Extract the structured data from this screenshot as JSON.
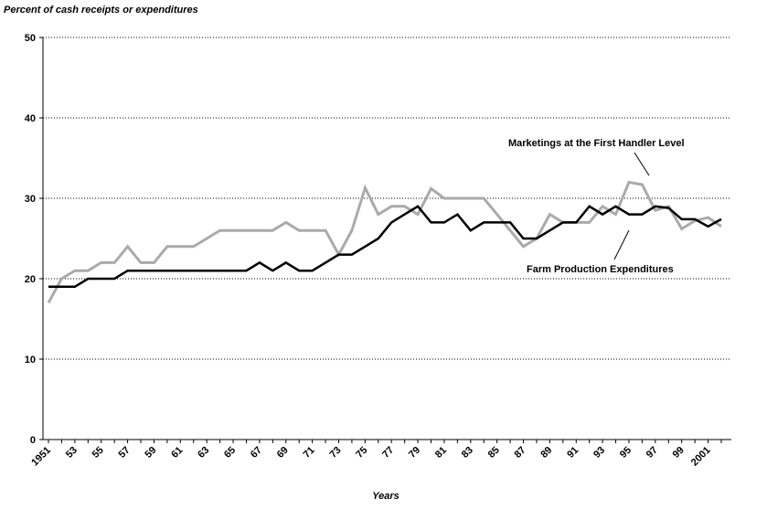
{
  "chart_data": {
    "type": "line",
    "y_axis_label": "Percent of cash receipts or expenditures",
    "x_axis_label": "Years",
    "categories": [
      "1951",
      null,
      "53",
      null,
      "55",
      null,
      "57",
      null,
      "59",
      null,
      "61",
      null,
      "63",
      null,
      "65",
      null,
      "67",
      null,
      "69",
      null,
      "71",
      null,
      "73",
      null,
      "75",
      null,
      "77",
      null,
      "79",
      null,
      "81",
      null,
      "83",
      null,
      "85",
      null,
      "87",
      null,
      "89",
      null,
      "91",
      null,
      "93",
      null,
      "95",
      null,
      "97",
      null,
      "99",
      null,
      "2001",
      null
    ],
    "series": [
      {
        "name": "Marketings at the First Handler Level",
        "color": "#aaaaaa",
        "values": [
          17,
          20,
          21,
          21,
          22,
          22,
          24,
          22,
          22,
          24,
          24,
          24,
          25,
          26,
          26,
          26,
          26,
          26,
          27,
          26,
          26,
          26,
          23,
          26,
          31.3,
          28,
          29,
          29,
          28,
          31.2,
          30,
          30,
          30,
          30,
          28,
          26,
          24,
          25,
          28,
          27,
          27,
          27,
          29,
          28,
          32,
          31.7,
          28.5,
          29,
          26.2,
          27.2,
          27.6,
          26.5
        ]
      },
      {
        "name": "Farm Production Expenditures",
        "color": "#000000",
        "values": [
          19,
          19,
          19,
          20,
          20,
          20,
          21,
          21,
          21,
          21,
          21,
          21,
          21,
          21,
          21,
          21,
          22,
          21,
          22,
          21,
          21,
          22,
          23,
          23,
          24,
          25,
          27,
          28,
          29,
          27,
          27,
          28,
          26,
          27,
          27,
          27,
          25,
          25,
          26,
          27,
          27,
          29,
          28,
          29,
          28,
          28,
          29,
          28.8,
          27.4,
          27.4,
          26.5,
          27.4
        ]
      }
    ],
    "ylim": [
      0,
      50
    ],
    "yticks": [
      0,
      10,
      20,
      30,
      40,
      50
    ],
    "grid": true
  }
}
